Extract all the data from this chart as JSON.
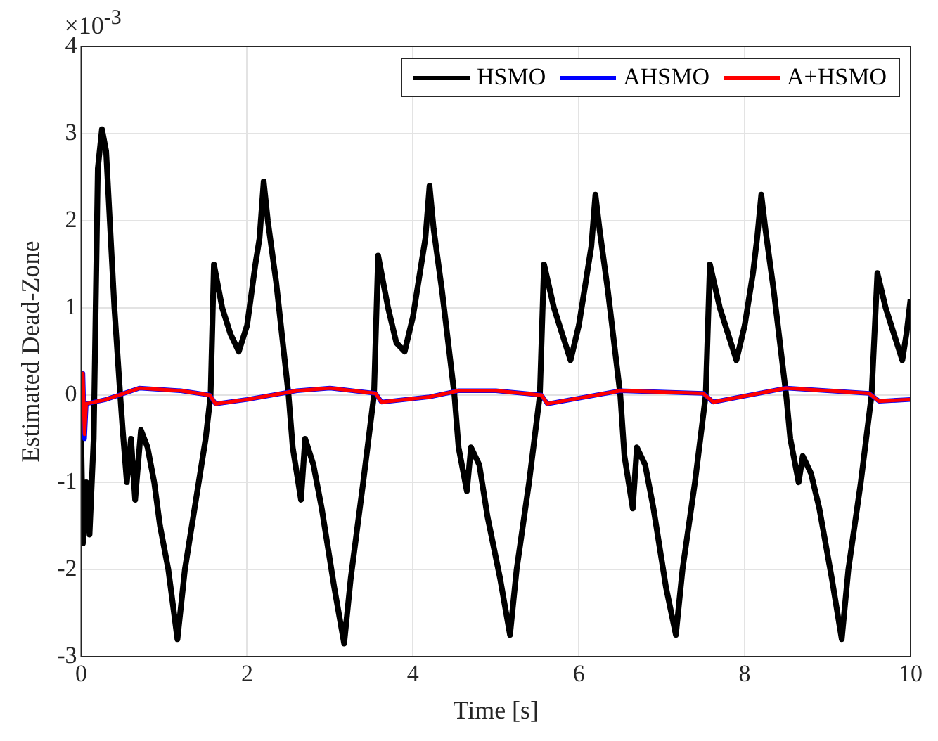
{
  "chart_data": {
    "type": "line",
    "xlabel": "Time [s]",
    "ylabel": "Estimated Dead-Zone",
    "annotations": [
      "×10$^{-3}$"
    ],
    "xlim": [
      0,
      10
    ],
    "xticks": [
      0,
      2,
      4,
      6,
      8,
      10
    ],
    "ylim": [
      -3,
      4
    ],
    "yticks": [
      -3,
      -2,
      -1,
      0,
      1,
      2,
      3,
      4
    ],
    "grid": true,
    "legend": "top right",
    "marker": "none",
    "line_style": "solid",
    "series": [
      {
        "name": "HSMO",
        "color": "#000000",
        "x": [
          0,
          0.02,
          0.06,
          0.1,
          0.15,
          0.2,
          0.25,
          0.3,
          0.4,
          0.47,
          0.5,
          0.55,
          0.6,
          0.65,
          0.72,
          0.8,
          0.88,
          0.95,
          1.05,
          1.16,
          1.25,
          1.4,
          1.5,
          1.56,
          1.6,
          1.7,
          1.8,
          1.9,
          2.0,
          2.1,
          2.15,
          2.2,
          2.25,
          2.35,
          2.5,
          2.55,
          2.65,
          2.7,
          2.8,
          2.9,
          3.05,
          3.17,
          3.25,
          3.4,
          3.53,
          3.58,
          3.7,
          3.8,
          3.9,
          4.0,
          4.1,
          4.15,
          4.2,
          4.25,
          4.35,
          4.5,
          4.55,
          4.65,
          4.7,
          4.8,
          4.9,
          5.05,
          5.17,
          5.25,
          5.4,
          5.53,
          5.58,
          5.7,
          5.8,
          5.9,
          6.0,
          6.1,
          6.15,
          6.2,
          6.25,
          6.35,
          6.5,
          6.55,
          6.65,
          6.7,
          6.8,
          6.9,
          7.05,
          7.17,
          7.25,
          7.4,
          7.53,
          7.58,
          7.7,
          7.8,
          7.9,
          8.0,
          8.1,
          8.15,
          8.2,
          8.25,
          8.35,
          8.5,
          8.55,
          8.65,
          8.7,
          8.8,
          8.9,
          9.05,
          9.17,
          9.25,
          9.4,
          9.53,
          9.6,
          9.7,
          9.8,
          9.9,
          9.95,
          10
        ],
        "values": [
          -0.5,
          -1.7,
          -1.0,
          -1.6,
          -0.5,
          2.6,
          3.05,
          2.8,
          1.0,
          0,
          -0.4,
          -1.0,
          -0.5,
          -1.2,
          -0.4,
          -0.6,
          -1.0,
          -1.5,
          -2.0,
          -2.8,
          -2.0,
          -1.1,
          -0.5,
          0,
          1.5,
          1.0,
          0.7,
          0.5,
          0.8,
          1.5,
          1.8,
          2.45,
          2.0,
          1.3,
          0,
          -0.6,
          -1.2,
          -0.5,
          -0.8,
          -1.3,
          -2.2,
          -2.85,
          -2.1,
          -1.0,
          0,
          1.6,
          1.0,
          0.6,
          0.5,
          0.9,
          1.5,
          1.8,
          2.4,
          1.9,
          1.2,
          0,
          -0.6,
          -1.1,
          -0.6,
          -0.8,
          -1.4,
          -2.1,
          -2.75,
          -2.0,
          -1.0,
          0,
          1.5,
          1.0,
          0.7,
          0.4,
          0.8,
          1.4,
          1.7,
          2.3,
          1.9,
          1.2,
          0,
          -0.7,
          -1.3,
          -0.6,
          -0.8,
          -1.3,
          -2.2,
          -2.75,
          -2.0,
          -1.0,
          0,
          1.5,
          1.0,
          0.7,
          0.4,
          0.8,
          1.4,
          1.8,
          2.3,
          1.9,
          1.2,
          0,
          -0.5,
          -1.0,
          -0.7,
          -0.9,
          -1.3,
          -2.1,
          -2.8,
          -2.0,
          -1.0,
          0,
          1.4,
          1.0,
          0.7,
          0.4,
          0.7,
          1.1
        ]
      },
      {
        "name": "AHSMO",
        "color": "#0000ff",
        "x": [
          0,
          0.02,
          0.04,
          0.06,
          0.3,
          0.7,
          1.2,
          1.55,
          1.62,
          2.0,
          2.6,
          3.0,
          3.55,
          3.62,
          4.2,
          4.55,
          5.0,
          5.55,
          5.62,
          6.5,
          7.5,
          7.62,
          8.5,
          9.5,
          9.62,
          10
        ],
        "values": [
          0,
          0.25,
          -0.5,
          -0.1,
          -0.05,
          0.08,
          0.05,
          0,
          -0.1,
          -0.05,
          0.05,
          0.08,
          0.02,
          -0.08,
          -0.02,
          0.05,
          0.05,
          0,
          -0.1,
          0.05,
          0.02,
          -0.08,
          0.08,
          0.02,
          -0.07,
          -0.05
        ]
      },
      {
        "name": "A+HSMO",
        "color": "#ff0000",
        "x": [
          0,
          0.02,
          0.04,
          0.06,
          0.3,
          0.7,
          1.2,
          1.55,
          1.62,
          2.0,
          2.6,
          3.0,
          3.55,
          3.62,
          4.2,
          4.55,
          5.0,
          5.55,
          5.62,
          6.5,
          7.5,
          7.62,
          8.5,
          9.5,
          9.62,
          10
        ],
        "values": [
          0,
          0.25,
          -0.45,
          -0.1,
          -0.05,
          0.08,
          0.05,
          0,
          -0.1,
          -0.05,
          0.05,
          0.08,
          0.02,
          -0.08,
          -0.02,
          0.05,
          0.05,
          0,
          -0.1,
          0.05,
          0.02,
          -0.08,
          0.08,
          0.02,
          -0.07,
          -0.05
        ]
      }
    ]
  }
}
